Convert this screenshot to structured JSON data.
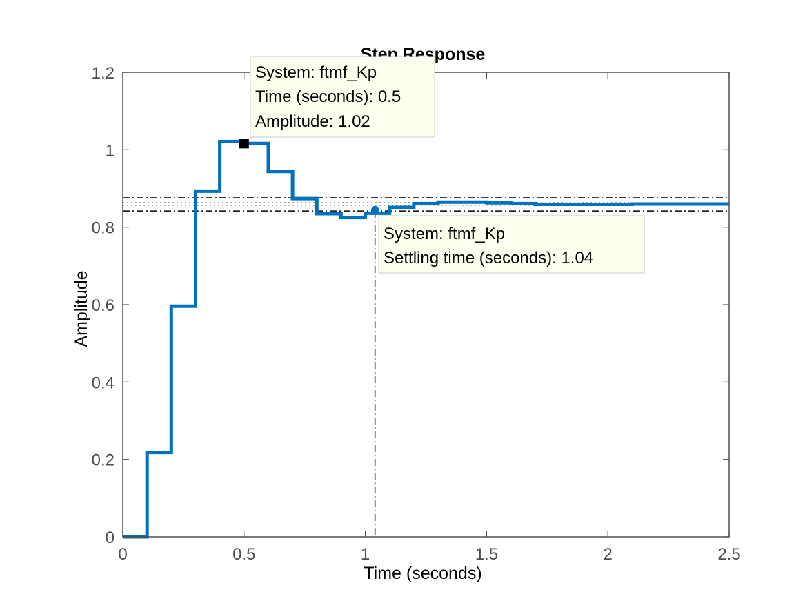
{
  "chart_data": {
    "type": "line",
    "title": "Step Response",
    "xlabel": "Time (seconds)",
    "ylabel": "Amplitude",
    "xlim": [
      0,
      2.5
    ],
    "ylim": [
      0,
      1.2
    ],
    "x_ticks": [
      0,
      0.5,
      1,
      1.5,
      2,
      2.5
    ],
    "x_tick_labels": [
      "0",
      "0.5",
      "1",
      "1.5",
      "2",
      "2.5"
    ],
    "y_ticks": [
      0,
      0.2,
      0.4,
      0.6,
      0.8,
      1,
      1.2
    ],
    "y_tick_labels": [
      "0",
      "0.2",
      "0.4",
      "0.6",
      "0.8",
      "1",
      "1.2"
    ],
    "grid": false,
    "series": [
      {
        "name": "ftmf_Kp",
        "color": "#0072bd",
        "style": "stairs",
        "x": [
          0,
          0.1,
          0.2,
          0.3,
          0.4,
          0.5,
          0.6,
          0.7,
          0.8,
          0.9,
          1.0,
          1.1,
          1.2,
          1.3,
          1.4,
          1.5,
          1.6,
          1.7,
          1.8,
          1.9,
          2.0,
          2.1,
          2.2,
          2.3,
          2.4,
          2.5
        ],
        "y": [
          0,
          0.218,
          0.596,
          0.893,
          1.021,
          1.016,
          0.944,
          0.874,
          0.835,
          0.825,
          0.836,
          0.851,
          0.861,
          0.865,
          0.865,
          0.863,
          0.861,
          0.859,
          0.859,
          0.859,
          0.859,
          0.86,
          0.86,
          0.86,
          0.86,
          0.86
        ]
      }
    ],
    "settling_band": {
      "upper": 0.876,
      "lower": 0.842,
      "final_value": 0.86,
      "final_value_dotted": [
        0.857,
        0.863
      ]
    },
    "settling_time_line": {
      "x": 1.04
    },
    "markers": [
      {
        "x": 0.5,
        "y": 1.016,
        "shape": "square",
        "color": "#000000"
      },
      {
        "x": 1.04,
        "y": 0.845,
        "shape": "dot",
        "color": "#0072bd"
      }
    ],
    "annotations": [
      {
        "id": "peak",
        "lines": [
          "System: ftmf_Kp",
          "Time (seconds): 0.5",
          "Amplitude: 1.02"
        ]
      },
      {
        "id": "settling",
        "lines": [
          "System: ftmf_Kp",
          "Settling time (seconds): 1.04"
        ]
      }
    ],
    "colors": {
      "series": "#0072bd",
      "datatip_bg": "#fffff0",
      "datatip_border": "#c8c8c8",
      "axes": "#4d4d4d"
    }
  }
}
